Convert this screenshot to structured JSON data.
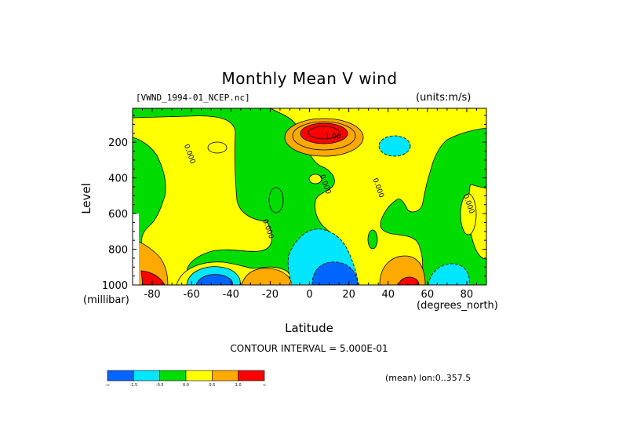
{
  "chart_data": {
    "type": "heatmap",
    "title": "Monthly Mean V wind",
    "dataset_label": "[VWND_1994-01_NCEP.nc]",
    "units_label": "(units:m/s)",
    "xlabel": "Latitude",
    "x_units": "(degrees_north)",
    "ylabel": "Level",
    "y_units": "(millibar)",
    "xlim": [
      -90,
      90
    ],
    "ylim": [
      1000,
      10
    ],
    "x_ticks": [
      -80,
      -60,
      -40,
      -20,
      0,
      20,
      40,
      60,
      80
    ],
    "y_ticks": [
      200,
      400,
      600,
      800,
      1000
    ],
    "contour_interval_text": "CONTOUR INTERVAL = 5.000E-01",
    "subtitle_right": "(mean) lon:0..357.5",
    "contour_labels": [
      {
        "text": "1.00",
        "lat": 12,
        "level": 180
      },
      {
        "text": "0.000",
        "lat": -62,
        "level": 270
      },
      {
        "text": "0.000",
        "lat": 7,
        "level": 440
      },
      {
        "text": "0.000",
        "lat": 34,
        "level": 460
      },
      {
        "text": "0.000",
        "lat": -22,
        "level": 690
      },
      {
        "text": "0.000",
        "lat": 80,
        "level": 550
      }
    ],
    "color_scale": {
      "colors": [
        "#0064ff",
        "#00e6ff",
        "#00dc00",
        "#ffff00",
        "#ffaa00",
        "#ff0000"
      ],
      "tick_labels": [
        "-∞",
        "-1.5",
        "-0.5",
        "0.0",
        "0.5",
        "1.0",
        "∞"
      ]
    },
    "regions": [
      {
        "value": "positive",
        "color": "#ffaa00",
        "lat": -81,
        "level": 850
      },
      {
        "value": "max",
        "color": "#ff0000",
        "lat": -80,
        "level": 960
      },
      {
        "value": "positive",
        "color": "#ffaa00",
        "lat": -27,
        "level": 955
      },
      {
        "value": "positive",
        "color": "#ffaa00",
        "lat": 10,
        "level": 170
      },
      {
        "value": "max",
        "color": "#ff0000",
        "lat": 10,
        "level": 160
      },
      {
        "value": "negative",
        "color": "#00e6ff",
        "lat": 5,
        "level": 850
      },
      {
        "value": "min",
        "color": "#0064ff",
        "lat": 15,
        "level": 960
      },
      {
        "value": "negative",
        "color": "#00e6ff",
        "lat": 44,
        "level": 200
      },
      {
        "value": "positive",
        "color": "#ffaa00",
        "lat": 50,
        "level": 940
      },
      {
        "value": "max",
        "color": "#ff0000",
        "lat": 50,
        "level": 985
      },
      {
        "value": "negative",
        "color": "#00e6ff",
        "lat": 70,
        "level": 950
      },
      {
        "value": "min",
        "color": "#0064ff",
        "lat": -52,
        "level": 975
      }
    ]
  }
}
